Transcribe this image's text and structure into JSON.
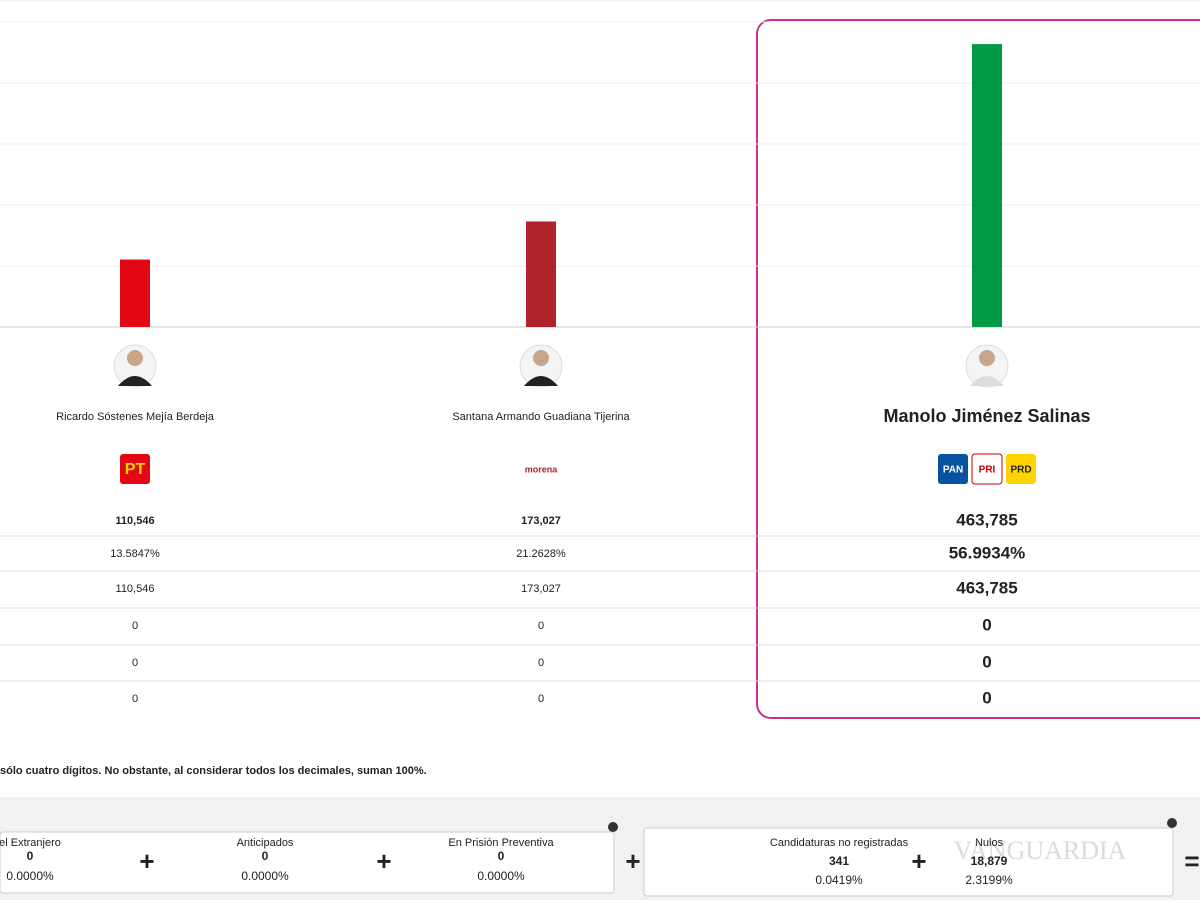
{
  "chart_data": {
    "type": "bar",
    "categories": [
      "Ricardo Sóstenes Mejía Berdeja",
      "Santana Armando Guadiana Tijerina",
      "Manolo Jiménez Salinas"
    ],
    "values": [
      110546,
      173027,
      463785
    ],
    "colors": [
      "#e30613",
      "#b0232a",
      "#009a44"
    ],
    "ylim": [
      0,
      500000
    ],
    "grid": true,
    "highlight": 2
  },
  "candidates": [
    {
      "logos": [
        "PT"
      ]
    },
    {
      "logos": [
        "morena"
      ]
    },
    {
      "logos": [
        "PAN",
        "PRI",
        "PRD"
      ]
    }
  ],
  "table": {
    "rows": [
      [
        "110,546",
        "173,027",
        "463,785"
      ],
      [
        "13.5847%",
        "21.2628%",
        "56.9934%"
      ],
      [
        "110,546",
        "173,027",
        "463,785"
      ],
      [
        "0",
        "0",
        "0"
      ],
      [
        "0",
        "0",
        "0"
      ],
      [
        "0",
        "0",
        "0"
      ]
    ]
  },
  "footnote": "sólo cuatro dígitos. No obstante, al considerar todos los decimales, suman 100%.",
  "summary": {
    "items": [
      {
        "label": "el Extranjero",
        "count": "0",
        "percent": "0.0000%"
      },
      {
        "label": "Anticipados",
        "count": "0",
        "percent": "0.0000%"
      },
      {
        "label": "En Prisión Preventiva",
        "count": "0",
        "percent": "0.0000%"
      },
      {
        "label": "Candidaturas no registradas",
        "count": "341",
        "percent": "0.0419%"
      },
      {
        "label": "Nulos",
        "count": "18,879",
        "percent": "2.3199%"
      }
    ],
    "operators": [
      "+",
      "+",
      "+",
      "+",
      "="
    ]
  },
  "watermark": "VANGUARDIA"
}
